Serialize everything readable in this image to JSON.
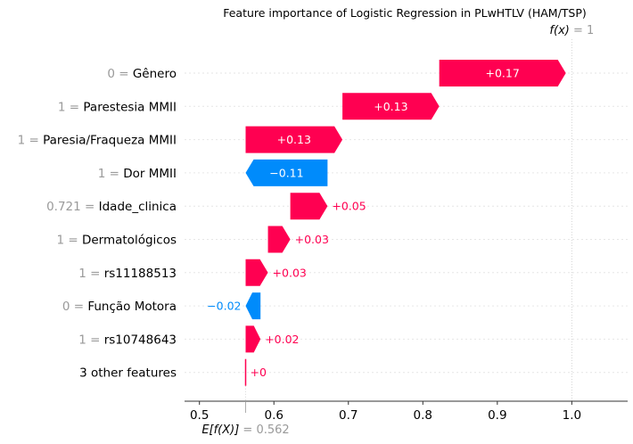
{
  "chart_data": {
    "type": "waterfall",
    "title": "Feature importance of Logistic Regression in PLwHTLV (HAM/TSP)",
    "base_value": 0.562,
    "base_value_label": "0.562",
    "base_label": "E[f(X)]",
    "output_value": 1,
    "output_value_label": "1",
    "output_label": "f(x)",
    "xlim": [
      0.48,
      1.075
    ],
    "xticks": [
      0.5,
      0.6,
      0.7,
      0.8,
      0.9,
      1.0
    ],
    "xtick_labels": [
      "0.5",
      "0.6",
      "0.7",
      "0.8",
      "0.9",
      "1.0"
    ],
    "features": [
      {
        "value": "0",
        "name": "Gênero",
        "contribution": 0.17,
        "label": "+0.17"
      },
      {
        "value": "1",
        "name": "Parestesia MMII",
        "contribution": 0.13,
        "label": "+0.13"
      },
      {
        "value": "1",
        "name": "Paresia/Fraqueza MMII",
        "contribution": 0.13,
        "label": "+0.13"
      },
      {
        "value": "1",
        "name": "Dor MMII",
        "contribution": -0.11,
        "label": "−0.11"
      },
      {
        "value": "0.721",
        "name": "Idade_clinica",
        "contribution": 0.05,
        "label": "+0.05"
      },
      {
        "value": "1",
        "name": "Dermatológicos",
        "contribution": 0.03,
        "label": "+0.03"
      },
      {
        "value": "1",
        "name": "rs11188513",
        "contribution": 0.03,
        "label": "+0.03"
      },
      {
        "value": "0",
        "name": "Função Motora",
        "contribution": -0.02,
        "label": "−0.02"
      },
      {
        "value": "1",
        "name": "rs10748643",
        "contribution": 0.02,
        "label": "+0.02"
      },
      {
        "value": "",
        "name": "3 other features",
        "contribution": 0.0,
        "label": "+0"
      }
    ],
    "features_bottom_to_top": true,
    "colors": {
      "positive": "#ff0051",
      "negative": "#008bfb",
      "muted": "#9a9a9a",
      "grid": "#e6e6e6"
    }
  }
}
